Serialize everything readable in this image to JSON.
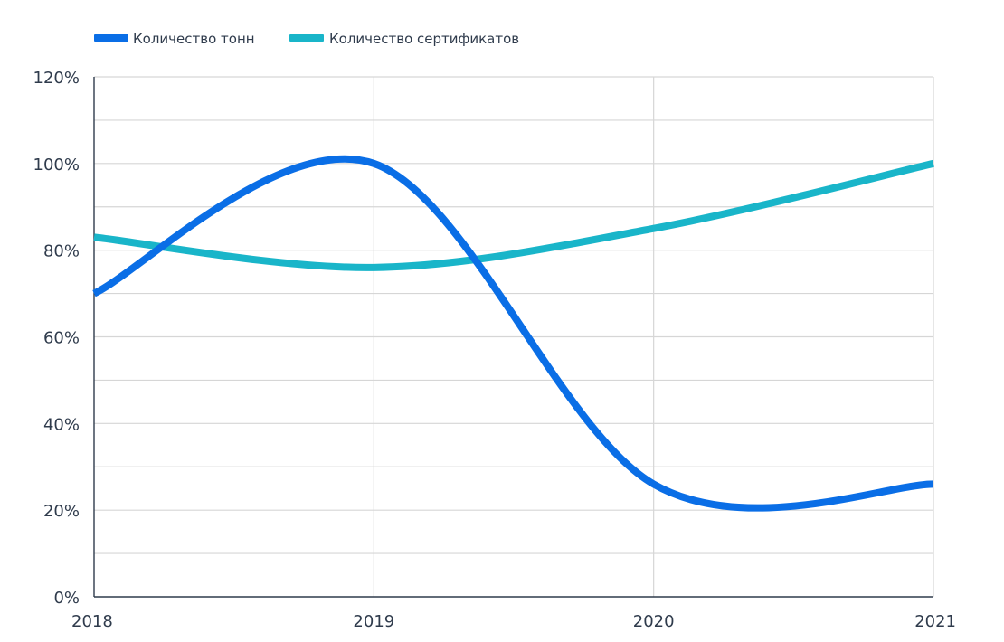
{
  "chart_data": {
    "type": "line",
    "x": [
      "2018",
      "2019",
      "2020",
      "2021"
    ],
    "ylim": [
      0,
      120
    ],
    "y_ticks": [
      0,
      20,
      40,
      60,
      80,
      100,
      120
    ],
    "y_tick_labels": [
      "0%",
      "20%",
      "40%",
      "60%",
      "80%",
      "100%",
      "120%"
    ],
    "y_unit": "%",
    "grid": true,
    "legend_position": "top-left",
    "smooth": true,
    "series": [
      {
        "name": "Количество тонн",
        "color": "#0a6ee6",
        "values": [
          70,
          100,
          26,
          26
        ]
      },
      {
        "name": "Количество сертификатов",
        "color": "#19b5c9",
        "values": [
          83,
          76,
          85,
          100
        ]
      }
    ]
  }
}
